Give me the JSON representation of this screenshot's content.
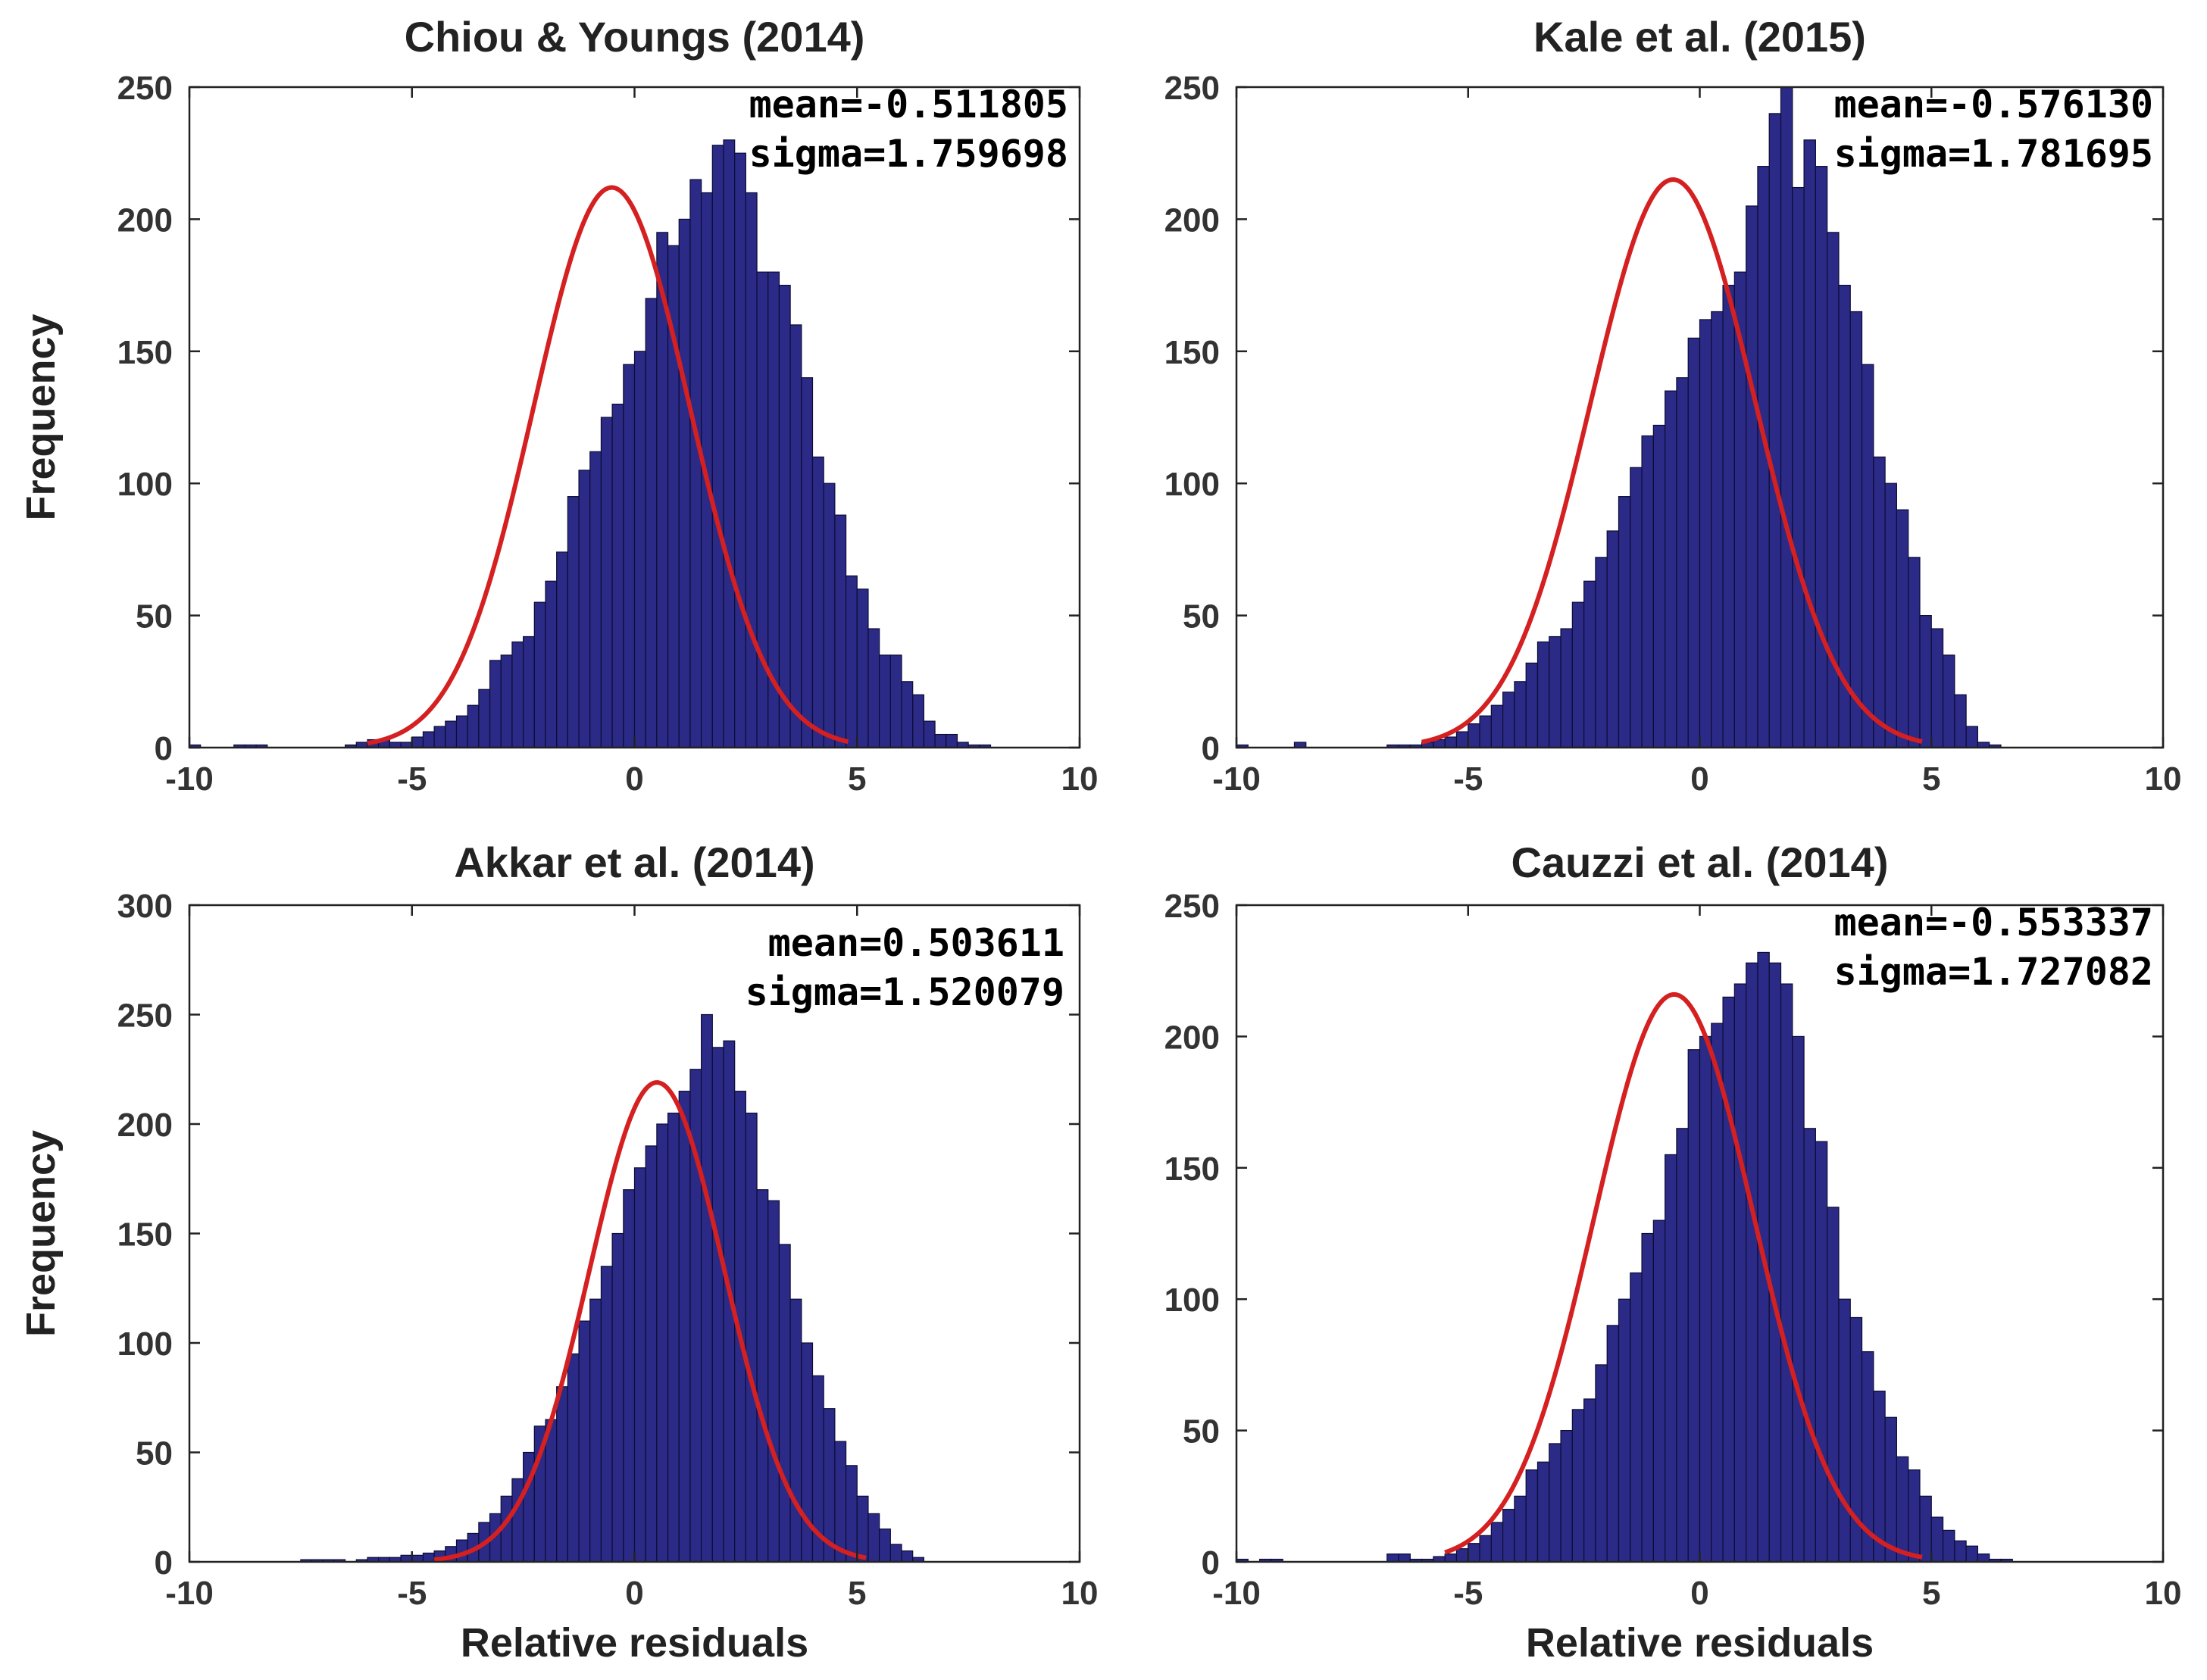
{
  "figure": {
    "colors": {
      "bar": "#2b2a86",
      "bar_edge": "#0c0c35",
      "fit": "#d42020"
    }
  },
  "chart_data": [
    {
      "type": "bar",
      "title": "Chiou & Youngs (2014)",
      "ylabel": "Frequency",
      "xlabel": "",
      "xlim": [
        -10,
        10
      ],
      "ylim": [
        0,
        250
      ],
      "xticks": [
        "-10",
        "-5",
        "0",
        "5",
        "10"
      ],
      "yticks": [
        "0",
        "50",
        "100",
        "150",
        "200",
        "250"
      ],
      "stats": {
        "mean_text": "mean=-0.511805",
        "sigma_text": "sigma=1.759698"
      },
      "fit": {
        "mean": -0.511805,
        "sigma": 1.759698,
        "peak": 212,
        "from": -6,
        "to": 4.8
      },
      "bins": {
        "start": -10,
        "width": 0.25
      },
      "values": [
        1,
        0,
        0,
        0,
        1,
        1,
        1,
        0,
        0,
        0,
        0,
        0,
        0,
        0,
        1,
        2,
        3,
        3,
        2,
        2,
        4,
        6,
        8,
        10,
        12,
        16,
        22,
        33,
        35,
        40,
        42,
        55,
        63,
        74,
        95,
        105,
        112,
        125,
        130,
        145,
        150,
        170,
        195,
        190,
        200,
        215,
        210,
        228,
        230,
        225,
        210,
        180,
        180,
        175,
        160,
        140,
        110,
        100,
        88,
        65,
        60,
        45,
        35,
        35,
        25,
        20,
        10,
        5,
        5,
        2,
        1,
        1
      ]
    },
    {
      "type": "bar",
      "title": "Kale et al. (2015)",
      "ylabel": "",
      "xlabel": "",
      "xlim": [
        -10,
        10
      ],
      "ylim": [
        0,
        250
      ],
      "xticks": [
        "-10",
        "-5",
        "0",
        "5",
        "10"
      ],
      "yticks": [
        "0",
        "50",
        "100",
        "150",
        "200",
        "250"
      ],
      "stats": {
        "mean_text": "mean=-0.576130",
        "sigma_text": "sigma=1.781695"
      },
      "fit": {
        "mean": -0.57613,
        "sigma": 1.781695,
        "peak": 215,
        "from": -6,
        "to": 4.8
      },
      "bins": {
        "start": -10,
        "width": 0.25
      },
      "values": [
        1,
        0,
        0,
        0,
        0,
        2,
        0,
        0,
        0,
        0,
        0,
        0,
        0,
        1,
        1,
        1,
        2,
        3,
        4,
        6,
        9,
        12,
        16,
        21,
        25,
        32,
        40,
        42,
        45,
        55,
        63,
        72,
        82,
        95,
        106,
        118,
        122,
        135,
        140,
        155,
        162,
        165,
        175,
        180,
        205,
        220,
        240,
        250,
        212,
        230,
        220,
        195,
        175,
        165,
        145,
        110,
        100,
        90,
        72,
        50,
        45,
        35,
        20,
        8,
        2,
        1,
        0,
        0,
        0,
        0,
        0,
        0
      ]
    },
    {
      "type": "bar",
      "title": "Akkar et al. (2014)",
      "ylabel": "Frequency",
      "xlabel": "Relative residuals",
      "xlim": [
        -10,
        10
      ],
      "ylim": [
        0,
        300
      ],
      "xticks": [
        "-10",
        "-5",
        "0",
        "5",
        "10"
      ],
      "yticks": [
        "0",
        "50",
        "100",
        "150",
        "200",
        "250",
        "300"
      ],
      "stats": {
        "mean_text": "mean=0.503611",
        "sigma_text": "sigma=1.520079"
      },
      "fit": {
        "mean": 0.503611,
        "sigma": 1.520079,
        "peak": 219,
        "from": -4.5,
        "to": 5.2
      },
      "bins": {
        "start": -10,
        "width": 0.25
      },
      "values": [
        0,
        0,
        0,
        0,
        0,
        0,
        0,
        0,
        0,
        0,
        1,
        1,
        1,
        1,
        0,
        1,
        2,
        2,
        2,
        3,
        3,
        4,
        5,
        7,
        10,
        13,
        18,
        22,
        30,
        38,
        50,
        62,
        65,
        80,
        95,
        110,
        120,
        135,
        150,
        170,
        180,
        190,
        200,
        205,
        215,
        225,
        250,
        235,
        238,
        215,
        205,
        170,
        165,
        145,
        120,
        100,
        85,
        70,
        55,
        44,
        30,
        22,
        15,
        8,
        5,
        2,
        0,
        0,
        0,
        0,
        0,
        0
      ]
    },
    {
      "type": "bar",
      "title": "Cauzzi et al. (2014)",
      "ylabel": "",
      "xlabel": "Relative residuals",
      "xlim": [
        -10,
        10
      ],
      "ylim": [
        0,
        250
      ],
      "xticks": [
        "-10",
        "-5",
        "0",
        "5",
        "10"
      ],
      "yticks": [
        "0",
        "50",
        "100",
        "150",
        "200",
        "250"
      ],
      "stats": {
        "mean_text": "mean=-0.553337",
        "sigma_text": "sigma=1.727082"
      },
      "fit": {
        "mean": -0.553337,
        "sigma": 1.727082,
        "peak": 216,
        "from": -5.5,
        "to": 4.8
      },
      "bins": {
        "start": -10,
        "width": 0.25
      },
      "values": [
        1,
        0,
        1,
        1,
        0,
        0,
        0,
        0,
        0,
        0,
        0,
        0,
        0,
        3,
        3,
        1,
        1,
        2,
        3,
        5,
        7,
        10,
        15,
        20,
        25,
        35,
        38,
        45,
        50,
        58,
        62,
        75,
        90,
        100,
        110,
        125,
        130,
        155,
        165,
        195,
        200,
        205,
        215,
        220,
        228,
        232,
        228,
        220,
        200,
        165,
        160,
        135,
        100,
        93,
        80,
        65,
        55,
        40,
        35,
        25,
        17,
        12,
        8,
        6,
        3,
        1,
        1,
        0,
        0,
        0,
        0,
        0
      ]
    }
  ]
}
